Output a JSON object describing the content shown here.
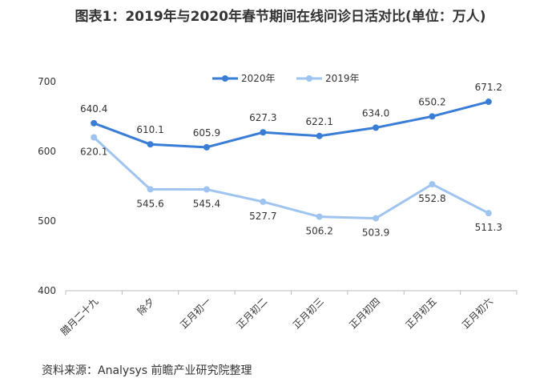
{
  "chart_data": {
    "type": "line",
    "title": "图表1：2019年与2020年春节期间在线问诊日活对比(单位：万人)",
    "categories": [
      "腊月二十九",
      "除夕",
      "正月初一",
      "正月初二",
      "正月初三",
      "正月初四",
      "正月初五",
      "正月初六"
    ],
    "series": [
      {
        "name": "2020年",
        "color": "#3a7dd6",
        "values": [
          640.4,
          610.1,
          605.9,
          627.3,
          622.1,
          634.0,
          650.2,
          671.2
        ],
        "value_labels": [
          "640.4",
          "610.1",
          "605.9",
          "627.3",
          "622.1",
          "634.0",
          "650.2",
          "671.2"
        ]
      },
      {
        "name": "2019年",
        "color": "#9ec4ef",
        "values": [
          620.1,
          545.6,
          545.4,
          527.7,
          506.2,
          503.9,
          552.8,
          511.3
        ],
        "value_labels": [
          "620.1",
          "545.6",
          "545.4",
          "527.7",
          "506.2",
          "503.9",
          "552.8",
          "511.3"
        ]
      }
    ],
    "ylim": [
      400,
      700
    ],
    "yticks": [
      400,
      500,
      600,
      700
    ],
    "grid": false,
    "legend": "top",
    "source": "资料来源：Analysys 前瞻产业研究院整理"
  }
}
